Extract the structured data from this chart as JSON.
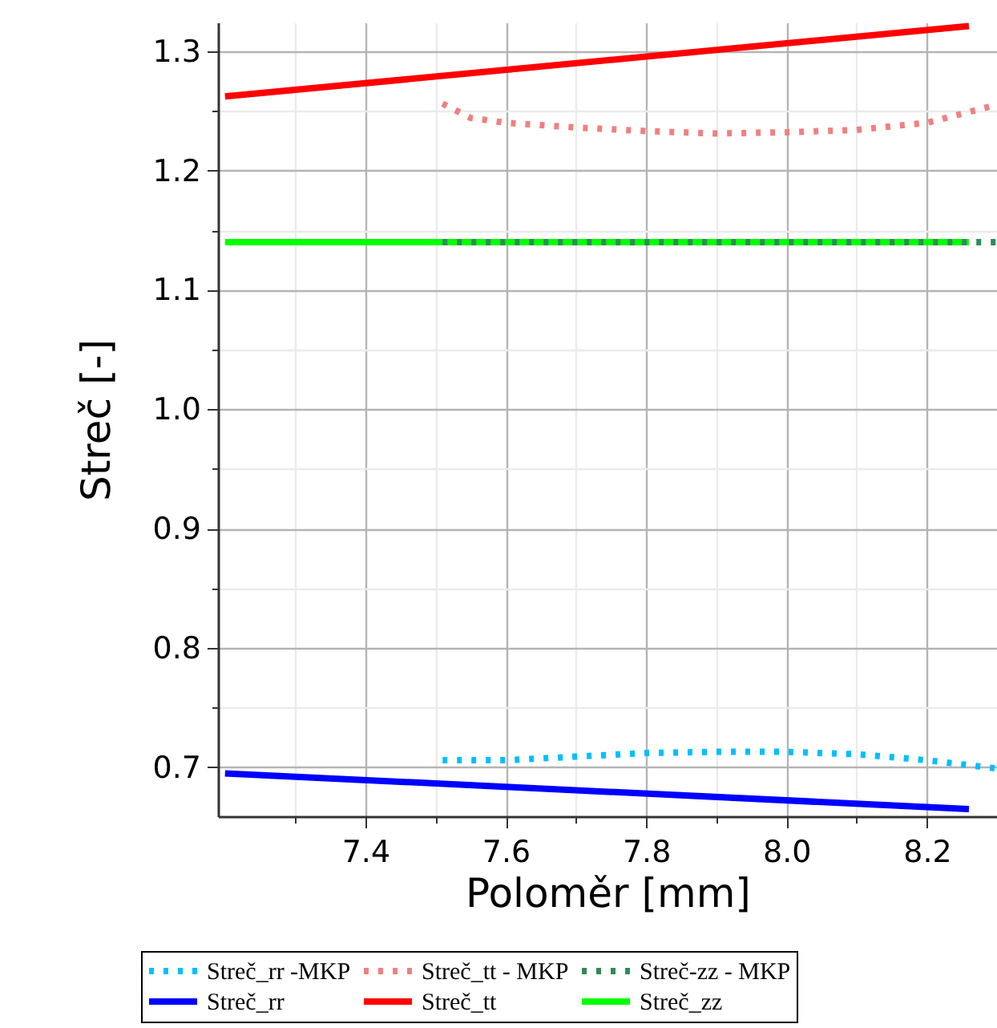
{
  "chart_data": {
    "type": "line",
    "xlabel": "Poloměr [mm]",
    "ylabel": "Streč [-]",
    "xlim": [
      7.19,
      8.3
    ],
    "ylim": [
      0.659,
      1.324
    ],
    "xticks": [
      {
        "value": 7.3,
        "label": null
      },
      7.4,
      {
        "value": 7.5,
        "label": null
      },
      7.6,
      {
        "value": 7.7,
        "label": null
      },
      7.8,
      {
        "value": 7.9,
        "label": null
      },
      {
        "value": 8.0,
        "label": "8.0"
      },
      {
        "value": 8.1,
        "label": null
      },
      8.2
    ],
    "yticks": [
      0.7,
      {
        "value": 0.75,
        "label": null
      },
      0.8,
      {
        "value": 0.85,
        "label": null
      },
      0.9,
      {
        "value": 0.95,
        "label": null
      },
      {
        "value": 1.0,
        "label": "1.0"
      },
      {
        "value": 1.05,
        "label": null
      },
      1.1,
      {
        "value": 1.15,
        "label": null
      },
      1.2,
      {
        "value": 1.25,
        "label": null
      },
      1.3
    ],
    "grid": true,
    "legend": "bottom",
    "series": [
      {
        "name": "Streč_rr -MKP",
        "color": "#00bfff",
        "line_style": "dotted",
        "x": [
          7.51,
          7.6,
          7.7,
          7.8,
          7.9,
          8.0,
          8.1,
          8.2,
          8.3
        ],
        "values": [
          0.706,
          0.706,
          0.709,
          0.712,
          0.713,
          0.713,
          0.711,
          0.706,
          0.699
        ]
      },
      {
        "name": "Streč_tt - MKP",
        "color": "#f08080",
        "line_style": "dotted",
        "x": [
          7.51,
          7.55,
          7.6,
          7.7,
          7.8,
          7.9,
          8.0,
          8.1,
          8.2,
          8.3
        ],
        "values": [
          1.256,
          1.244,
          1.24,
          1.236,
          1.233,
          1.231,
          1.232,
          1.234,
          1.24,
          1.255
        ]
      },
      {
        "name": "Streč-zz - MKP",
        "color": "#2e8b57",
        "line_style": "dotted",
        "x": [
          7.51,
          8.3
        ],
        "values": [
          1.14,
          1.14
        ]
      },
      {
        "name": "Streč_rr",
        "color": "#0000ff",
        "line_style": "solid",
        "x": [
          7.2,
          8.26
        ],
        "values": [
          0.695,
          0.665
        ]
      },
      {
        "name": "Streč_tt",
        "color": "#ff0000",
        "line_style": "solid",
        "x": [
          7.2,
          8.26
        ],
        "values": [
          1.262,
          1.321
        ]
      },
      {
        "name": "Streč_zz",
        "color": "#00ff00",
        "line_style": "solid",
        "x": [
          7.2,
          8.26
        ],
        "values": [
          1.14,
          1.14
        ]
      }
    ]
  }
}
